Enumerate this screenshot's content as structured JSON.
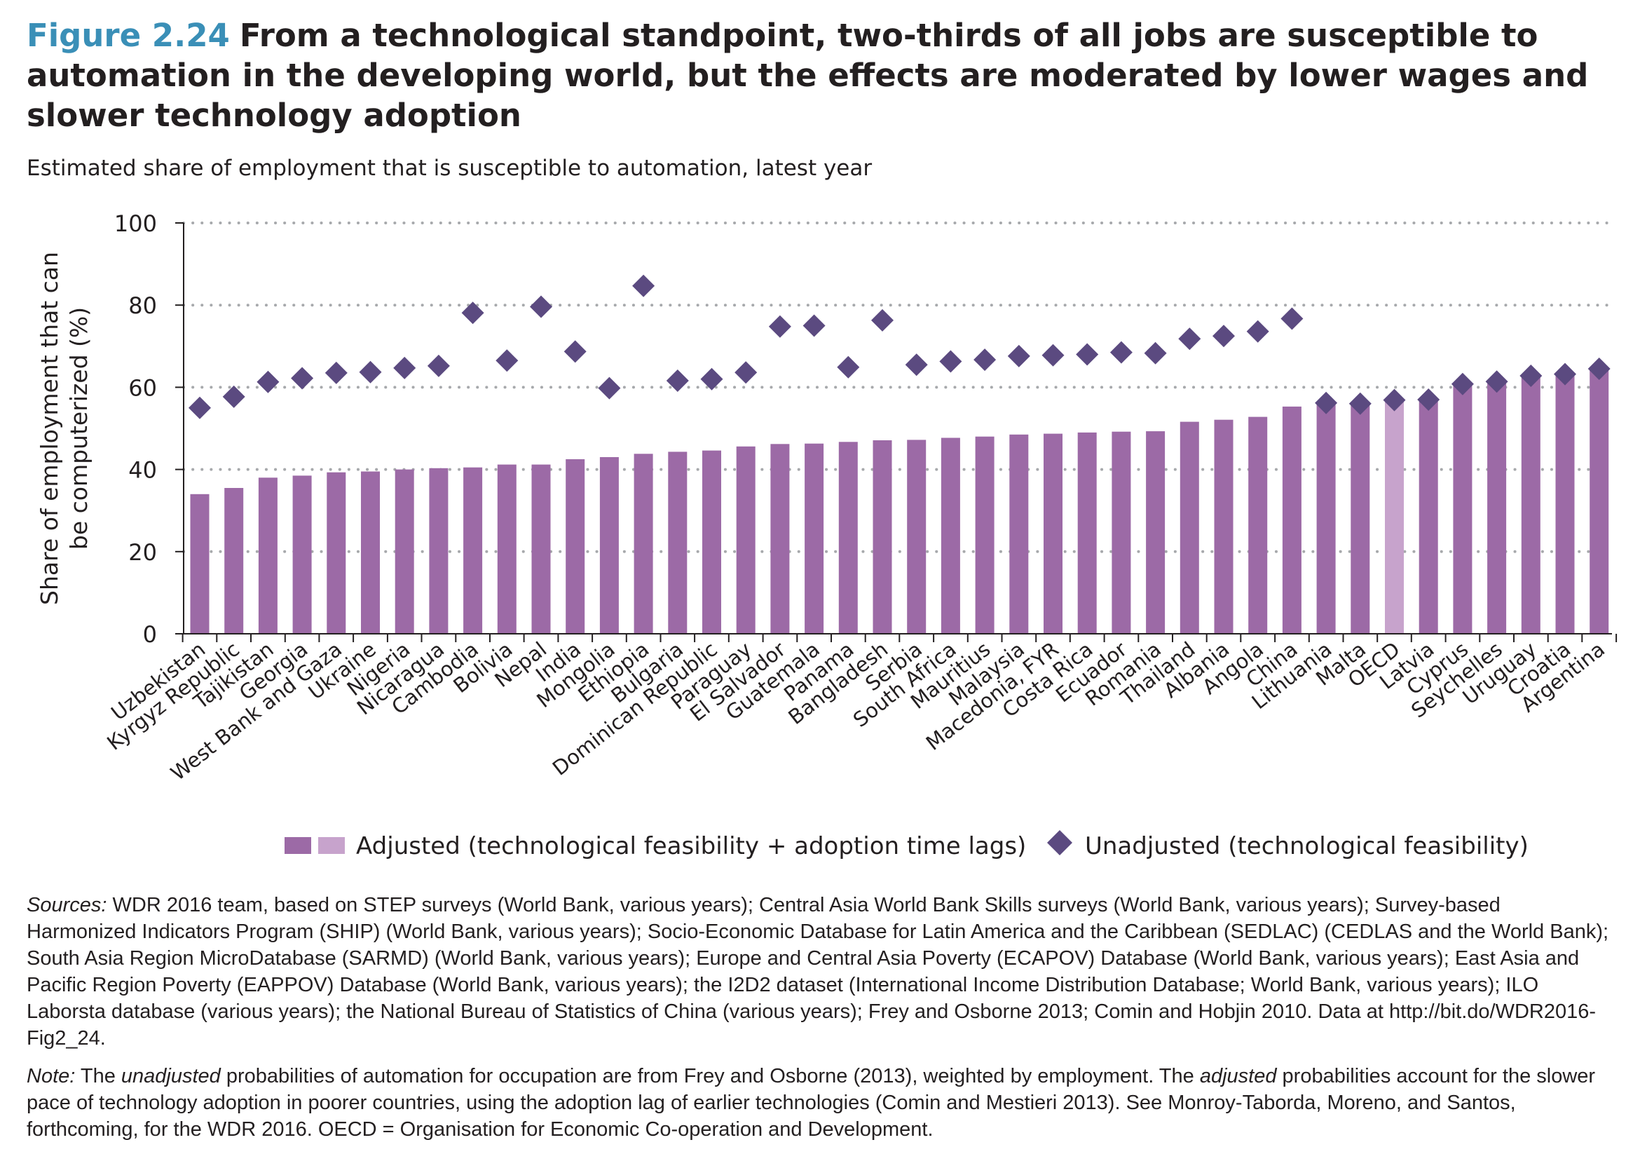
{
  "header": {
    "figure_number": "Figure 2.24",
    "title": "From a technological standpoint, two-thirds of all jobs are susceptible to automation in the developing world, but the effects are moderated by lower wages and slower technology adoption",
    "subtitle": "Estimated share of employment that is susceptible to automation, latest year"
  },
  "colors": {
    "adjusted": "#9c6aa6",
    "adjusted_highlight": "#c7a3cc",
    "unadjusted": "#5b4a80",
    "grid": "#a7a9ac",
    "axis": "#231f20",
    "figure_number": "#3a8fb7"
  },
  "chart_data": {
    "type": "bar",
    "title": "",
    "xlabel": "",
    "ylabel": "Share of employment that can be computerized (%)",
    "ylabel_lines": [
      "Share of employment that can",
      "be computerized (%)"
    ],
    "ylim": [
      0,
      100
    ],
    "yticks": [
      0,
      20,
      40,
      60,
      80,
      100
    ],
    "grid": true,
    "legend_position": "bottom",
    "highlight_category": "OECD",
    "categories": [
      "Uzbekistan",
      "Kyrgyz Republic",
      "Tajikistan",
      "Georgia",
      "West Bank and Gaza",
      "Ukraine",
      "Nigeria",
      "Nicaragua",
      "Cambodia",
      "Bolivia",
      "Nepal",
      "India",
      "Mongolia",
      "Ethiopia",
      "Bulgaria",
      "Dominican Republic",
      "Paraguay",
      "El Salvador",
      "Guatemala",
      "Panama",
      "Bangladesh",
      "Serbia",
      "South Africa",
      "Mauritius",
      "Malaysia",
      "Macedonia, FYR",
      "Costa Rica",
      "Ecuador",
      "Romania",
      "Thailand",
      "Albania",
      "Angola",
      "China",
      "Lithuania",
      "Malta",
      "OECD",
      "Latvia",
      "Cyprus",
      "Seychelles",
      "Uruguay",
      "Croatia",
      "Argentina"
    ],
    "series": [
      {
        "name": "Adjusted (technological feasibility + adoption time lags)",
        "type": "bar",
        "values": [
          34,
          35.5,
          38,
          38.5,
          39.3,
          39.5,
          40,
          40.3,
          40.5,
          41.2,
          41.2,
          42.5,
          43,
          43.8,
          44.3,
          44.6,
          45.6,
          46.2,
          46.3,
          46.7,
          47.1,
          47.2,
          47.7,
          48,
          48.5,
          48.7,
          49,
          49.2,
          49.3,
          51.6,
          52.1,
          52.8,
          55.3,
          56.4,
          56.3,
          57,
          56.8,
          60.8,
          61.4,
          62.8,
          63.3,
          64.5
        ]
      },
      {
        "name": "Unadjusted (technological feasibility)",
        "type": "scatter",
        "marker": "diamond",
        "values": [
          55,
          57.7,
          61.3,
          62.2,
          63.5,
          63.7,
          64.7,
          65.2,
          78.1,
          66.5,
          79.6,
          68.7,
          59.8,
          84.7,
          61.6,
          62,
          63.6,
          74.8,
          75,
          64.9,
          76.3,
          65.5,
          66.3,
          66.7,
          67.6,
          67.8,
          68,
          68.5,
          68.3,
          71.8,
          72.5,
          73.6,
          76.7,
          56.2,
          56,
          56.9,
          57,
          60.8,
          61.4,
          62.8,
          63.2,
          64.5
        ]
      }
    ]
  },
  "legend": {
    "adjusted_label": "Adjusted (technological feasibility + adoption time lags)",
    "unadjusted_label": "Unadjusted (technological feasibility)"
  },
  "sources": {
    "label": "Sources:",
    "text": " WDR 2016 team, based on STEP surveys (World Bank, various years); Central Asia World Bank Skills surveys (World Bank, various years); Survey-based Harmonized Indicators Program (SHIP) (World Bank, various years);  Socio-Economic Database for Latin America and the Caribbean (SEDLAC) (CEDLAS and the World Bank); South Asia Region MicroDatabase (SARMD) (World Bank, various years); Europe and Central Asia Poverty  (ECAPOV) Database (World Bank, various years); East Asia and Pacific Region Poverty (EAPPOV) Database (World Bank, various years); the I2D2 dataset (International Income Distribution Database; World Bank, various years); ILO Laborsta database (various years); the National Bureau of Statistics of China (various years); Frey and Osborne 2013; Comin and Hobjin 2010. Data at http://bit.do/WDR2016-Fig2_24."
  },
  "note": {
    "label": "Note:",
    "part1": " The ",
    "em1": "unadjusted",
    "part2": " probabilities of automation for occupation are from Frey and Osborne (2013), weighted by employment. The ",
    "em2": "adjusted",
    "part3": " probabilities account for the slower pace of technology adoption in poorer countries, using the adoption lag of earlier technologies (Comin and Mestieri 2013). See Monroy-Taborda, Moreno, and Santos, forthcoming, for the WDR 2016. OECD = Organisation for Economic Co-operation and Development."
  }
}
